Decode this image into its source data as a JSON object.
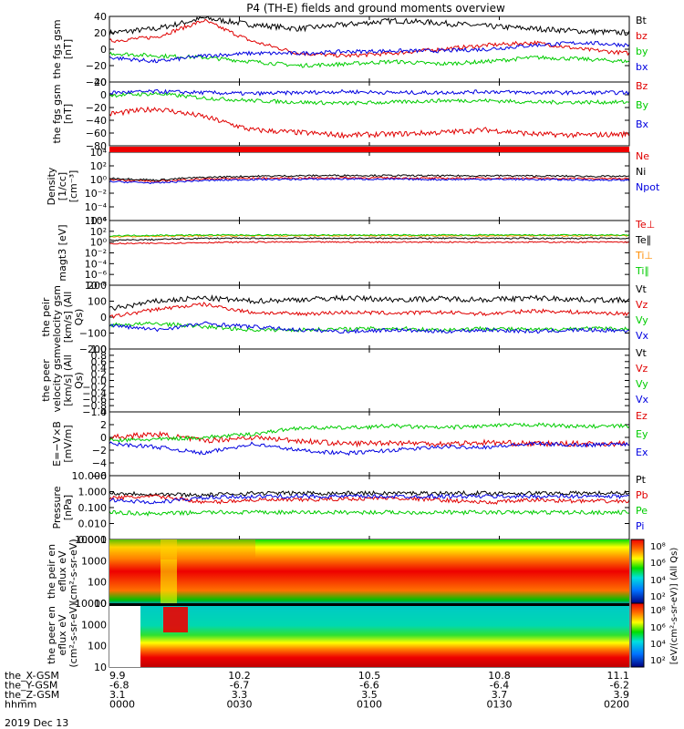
{
  "title": "P4 (TH-E) fields and ground moments overview",
  "time": {
    "ticks": [
      "0000",
      "0030",
      "0100",
      "0130",
      "0200"
    ],
    "date": "2019 Dec 13",
    "rows": [
      {
        "name": "the_X-GSM",
        "values": [
          "9.9",
          "10.2",
          "10.5",
          "10.8",
          "11.1"
        ]
      },
      {
        "name": "the_Y-GSM",
        "values": [
          "-6.8",
          "-6.7",
          "-6.6",
          "-6.4",
          "-6.2"
        ]
      },
      {
        "name": "the_Z-GSM",
        "values": [
          "3.1",
          "3.3",
          "3.5",
          "3.7",
          "3.9"
        ]
      },
      {
        "name": "hhmm",
        "values": [
          "0000",
          "0030",
          "0100",
          "0130",
          "0200"
        ]
      }
    ]
  },
  "colorbar": {
    "label": "[eV/(cm²-s-sr-eV)] (All Qs)",
    "ticks_top": [
      "10⁸",
      "10⁶",
      "10⁴",
      "10²"
    ],
    "ticks_bottom": [
      "10⁸",
      "10⁶",
      "10⁴",
      "10²"
    ]
  },
  "chart_data": [
    {
      "type": "line",
      "ylabel": "the fgs gsm [nT]",
      "ylim": [
        -40,
        40
      ],
      "yticks": [
        "40",
        "20",
        "0",
        "−20",
        "−40"
      ],
      "series": [
        {
          "name": "Bt",
          "color": "#000000",
          "values": [
            20,
            25,
            38,
            30,
            25,
            30,
            35,
            32,
            28,
            25,
            22,
            20
          ]
        },
        {
          "name": "bz",
          "color": "#e00000",
          "values": [
            10,
            15,
            35,
            10,
            -5,
            -8,
            -5,
            0,
            5,
            8,
            0,
            -5
          ]
        },
        {
          "name": "by",
          "color": "#00cc00",
          "values": [
            -5,
            -8,
            -10,
            -15,
            -20,
            -18,
            -15,
            -18,
            -15,
            -10,
            -12,
            -15
          ]
        },
        {
          "name": "bx",
          "color": "#0000e0",
          "values": [
            -10,
            -15,
            -8,
            -5,
            -5,
            -3,
            -2,
            -2,
            0,
            5,
            8,
            5
          ]
        }
      ]
    },
    {
      "type": "line",
      "ylabel": "the fgs gsm [nT]",
      "ylim": [
        -90,
        30
      ],
      "yticks": [
        "20",
        "0",
        "−20",
        "−40",
        "−60",
        "−80"
      ],
      "series": [
        {
          "name": "Bz",
          "color": "#e00000",
          "values": [
            -30,
            -20,
            -35,
            -60,
            -65,
            -70,
            -68,
            -65,
            -60,
            -68,
            -70,
            -68
          ]
        },
        {
          "name": "By",
          "color": "#00cc00",
          "values": [
            5,
            8,
            0,
            -5,
            -8,
            -10,
            -8,
            -5,
            -5,
            -8,
            -8,
            -8
          ]
        },
        {
          "name": "Bx",
          "color": "#0000e0",
          "values": [
            10,
            12,
            10,
            8,
            10,
            12,
            10,
            10,
            12,
            10,
            10,
            10
          ]
        }
      ]
    },
    {
      "type": "line",
      "ylabel": "Density [1/cc] [cm⁻³]",
      "log": true,
      "yticks": [
        "10⁴",
        "10²",
        "10⁰",
        "10⁻²",
        "10⁻⁴",
        "10⁻⁶"
      ],
      "series": [
        {
          "name": "Ne",
          "color": "#e00000",
          "values": [
            1,
            0.5,
            1.2,
            1.5,
            1.6,
            1.8,
            1.7,
            1.5,
            1.6,
            1.5,
            1.4,
            1.3
          ]
        },
        {
          "name": "Ni",
          "color": "#000000",
          "values": [
            1.5,
            0.8,
            2,
            3,
            3.5,
            4,
            3.8,
            3.5,
            3.6,
            3.3,
            3,
            2.8
          ]
        },
        {
          "name": "Npot",
          "color": "#0000e0",
          "values": [
            0.5,
            0.3,
            0.7,
            1,
            1.1,
            1.2,
            1.1,
            1,
            1.1,
            1,
            0.9,
            0.8
          ]
        }
      ]
    },
    {
      "type": "line",
      "ylabel": "magt3 [eV]",
      "log": true,
      "yticks": [
        "10⁴",
        "10²",
        "10⁰",
        "10⁻²",
        "10⁻⁴",
        "10⁻⁶",
        "10⁻⁸"
      ],
      "series": [
        {
          "name": "Te⊥",
          "color": "#e00000",
          "values": [
            0.5,
            0.6,
            0.8,
            1,
            1,
            1,
            1,
            1,
            1,
            1,
            1,
            1
          ]
        },
        {
          "name": "Te∥",
          "color": "#000000",
          "values": [
            2,
            3,
            5,
            5,
            5,
            5,
            5,
            5,
            5,
            5,
            5,
            5
          ]
        },
        {
          "name": "Ti⊥",
          "color": "#ff8c00",
          "values": [
            10,
            12,
            15,
            15,
            15,
            15,
            15,
            15,
            15,
            15,
            15,
            15
          ]
        },
        {
          "name": "Ti∥",
          "color": "#00cc00",
          "values": [
            15,
            18,
            20,
            20,
            20,
            20,
            20,
            20,
            20,
            20,
            20,
            20
          ]
        }
      ]
    },
    {
      "type": "line",
      "ylabel": "the peir velocity gsm [km/s] (All Qs)",
      "ylim": [
        -200,
        200
      ],
      "yticks": [
        "200",
        "100",
        "0",
        "−100",
        "−200"
      ],
      "series": [
        {
          "name": "Vt",
          "color": "#000000",
          "values": [
            50,
            100,
            120,
            100,
            110,
            120,
            110,
            115,
            110,
            120,
            110,
            105
          ]
        },
        {
          "name": "Vz",
          "color": "#e00000",
          "values": [
            0,
            50,
            80,
            30,
            20,
            30,
            25,
            30,
            20,
            40,
            30,
            20
          ]
        },
        {
          "name": "Vy",
          "color": "#00cc00",
          "values": [
            -50,
            -40,
            -60,
            -80,
            -80,
            -75,
            -70,
            -80,
            -70,
            -80,
            -70,
            -75
          ]
        },
        {
          "name": "Vx",
          "color": "#0000e0",
          "values": [
            -50,
            -80,
            -40,
            -60,
            -80,
            -90,
            -80,
            -90,
            -80,
            -90,
            -80,
            -85
          ]
        }
      ]
    },
    {
      "type": "line",
      "ylabel": "the peer velocity gsm [km/s] (All Qs)",
      "ylim": [
        -1,
        1
      ],
      "yticks": [
        "1.0",
        "0.8",
        "0.6",
        "0.4",
        "0.2",
        "0.0",
        "−0.2",
        "−0.4",
        "−0.6",
        "−0.8",
        "−1.0"
      ],
      "series": [
        {
          "name": "Vt",
          "color": "#000000",
          "values": []
        },
        {
          "name": "Vz",
          "color": "#e00000",
          "values": []
        },
        {
          "name": "Vy",
          "color": "#00cc00",
          "values": []
        },
        {
          "name": "Vx",
          "color": "#0000e0",
          "values": []
        }
      ]
    },
    {
      "type": "line",
      "ylabel": "E=−V×B [mV/m]",
      "ylim": [
        -6,
        4
      ],
      "yticks": [
        "4",
        "2",
        "0",
        "−2",
        "−4",
        "−6"
      ],
      "series": [
        {
          "name": "Ez",
          "color": "#e00000",
          "values": [
            0,
            0.5,
            -0.5,
            0,
            -0.5,
            -1,
            -0.8,
            -1,
            -0.8,
            -1,
            -1,
            -1
          ]
        },
        {
          "name": "Ey",
          "color": "#00cc00",
          "values": [
            -0.5,
            -0.3,
            0,
            0.5,
            1.5,
            1.5,
            1.8,
            1.5,
            1.8,
            2,
            1.7,
            1.8
          ]
        },
        {
          "name": "Ex",
          "color": "#0000e0",
          "values": [
            -1,
            -1.5,
            -2.5,
            -1,
            -2,
            -2.5,
            -2,
            -1.5,
            -1.5,
            -1,
            -1.2,
            -1
          ]
        }
      ]
    },
    {
      "type": "line",
      "ylabel": "Pressure [nPa]",
      "log": true,
      "yticks": [
        "10.000",
        "1.000",
        "0.100",
        "0.010",
        "0.001"
      ],
      "series": [
        {
          "name": "Pt",
          "color": "#000000",
          "values": [
            0.8,
            0.7,
            0.6,
            0.8,
            0.8,
            0.8,
            0.8,
            0.8,
            0.8,
            0.8,
            0.8,
            0.8
          ]
        },
        {
          "name": "Pb",
          "color": "#e00000",
          "values": [
            0.4,
            0.5,
            0.2,
            0.3,
            0.3,
            0.35,
            0.4,
            0.3,
            0.2,
            0.3,
            0.25,
            0.25
          ]
        },
        {
          "name": "Pe",
          "color": "#00cc00",
          "values": [
            0.05,
            0.04,
            0.05,
            0.05,
            0.05,
            0.05,
            0.05,
            0.05,
            0.05,
            0.05,
            0.05,
            0.05
          ]
        },
        {
          "name": "Pi",
          "color": "#0000e0",
          "values": [
            0.3,
            0.2,
            0.4,
            0.5,
            0.5,
            0.5,
            0.5,
            0.5,
            0.5,
            0.5,
            0.5,
            0.5
          ]
        }
      ]
    },
    {
      "type": "heatmap",
      "ylabel": "the peir en eflux eV (cm²-s-sr-eV)",
      "log": true,
      "yticks": [
        "10000",
        "1000",
        "100",
        "10"
      ]
    },
    {
      "type": "heatmap",
      "ylabel": "the peer en eflux eV (cm²-s-sr-eV)",
      "log": true,
      "yticks": [
        "10000",
        "1000",
        "100",
        "10"
      ]
    }
  ]
}
